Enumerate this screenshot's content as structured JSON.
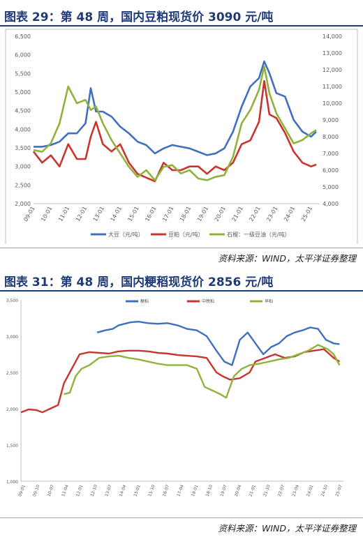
{
  "figures": [
    {
      "title": "图表 29：第 48 周，国内豆粕现货价 3090 元/吨",
      "source": "资料来源：WIND，太平洋证券整理"
    },
    {
      "title": "图表 31：第 48 周，国内粳稻现货价 2856 元/吨",
      "source": "资料来源：WIND，太平洋证券整理"
    }
  ],
  "chart_data": [
    {
      "type": "line",
      "title": "",
      "x_tick_labels": [
        "09-01",
        "10-01",
        "11-01",
        "12-01",
        "13-01",
        "14-01",
        "15-01",
        "16-01",
        "17-01",
        "18-01",
        "19-01",
        "20-01",
        "21-01",
        "22-01",
        "23-01",
        "24-01",
        "25-01"
      ],
      "y_left": {
        "range": [
          2000,
          6500
        ],
        "ticks": [
          "2,000",
          "2,500",
          "3,000",
          "3,500",
          "4,000",
          "4,500",
          "5,000",
          "5,500",
          "6,000",
          "6,500"
        ]
      },
      "y_right": {
        "range": [
          4000,
          14000
        ],
        "ticks": [
          "4,000",
          "5,000",
          "6,000",
          "7,000",
          "8,000",
          "9,000",
          "10,000",
          "11,000",
          "12,000",
          "13,000",
          "14,000"
        ]
      },
      "grid": false,
      "legend_position": "bottom",
      "series": [
        {
          "name": "大豆（元/吨）",
          "axis": "right",
          "color": "#3f6fbf",
          "x": [
            2009.0,
            2009.5,
            2010.0,
            2010.5,
            2011.0,
            2011.5,
            2012.0,
            2012.3,
            2012.6,
            2013.0,
            2013.5,
            2014.0,
            2014.5,
            2015.0,
            2015.5,
            2016.0,
            2016.5,
            2017.0,
            2017.5,
            2018.0,
            2018.5,
            2019.0,
            2019.5,
            2020.0,
            2020.5,
            2021.0,
            2021.5,
            2022.0,
            2022.3,
            2022.6,
            2023.0,
            2023.5,
            2024.0,
            2024.5,
            2025.0,
            2025.3
          ],
          "y": [
            7400,
            7400,
            7500,
            7700,
            8200,
            8200,
            8800,
            10900,
            9500,
            9500,
            9200,
            8600,
            8200,
            7700,
            7500,
            7000,
            7300,
            7500,
            7400,
            7300,
            7100,
            6900,
            7000,
            7300,
            8300,
            9800,
            11000,
            11500,
            12500,
            11800,
            10600,
            10400,
            9000,
            8300,
            8000,
            8300
          ]
        },
        {
          "name": "豆粕（元/吨）",
          "axis": "left",
          "color": "#c8352c",
          "x": [
            2009.0,
            2009.5,
            2010.0,
            2010.5,
            2011.0,
            2011.5,
            2012.0,
            2012.3,
            2012.6,
            2013.0,
            2013.5,
            2014.0,
            2014.5,
            2015.0,
            2015.5,
            2016.0,
            2016.5,
            2017.0,
            2017.5,
            2018.0,
            2018.5,
            2019.0,
            2019.5,
            2020.0,
            2020.5,
            2021.0,
            2021.5,
            2022.0,
            2022.3,
            2022.6,
            2023.0,
            2023.5,
            2024.0,
            2024.5,
            2025.0,
            2025.3
          ],
          "y": [
            3400,
            3100,
            3300,
            3000,
            3600,
            3200,
            3200,
            3800,
            4200,
            3600,
            3400,
            3600,
            3100,
            2800,
            2700,
            2600,
            3100,
            2900,
            2900,
            3000,
            3000,
            2800,
            3000,
            2900,
            3100,
            3600,
            3700,
            4200,
            5300,
            4400,
            4300,
            3900,
            3400,
            3100,
            3000,
            3050
          ]
        },
        {
          "name": "石榴：一级豆油（元/吨）",
          "axis": "right",
          "color": "#8fb33a",
          "x": [
            2009.0,
            2009.5,
            2010.0,
            2010.5,
            2011.0,
            2011.5,
            2012.0,
            2012.3,
            2012.6,
            2013.0,
            2013.5,
            2014.0,
            2014.5,
            2015.0,
            2015.5,
            2016.0,
            2016.5,
            2017.0,
            2017.5,
            2018.0,
            2018.5,
            2019.0,
            2019.5,
            2020.0,
            2020.5,
            2021.0,
            2021.5,
            2022.0,
            2022.3,
            2022.6,
            2023.0,
            2023.5,
            2024.0,
            2024.5,
            2025.0,
            2025.3
          ],
          "y": [
            7200,
            7100,
            7600,
            8800,
            11000,
            10000,
            10200,
            9600,
            9800,
            8800,
            7800,
            7000,
            6200,
            5600,
            6000,
            5400,
            6200,
            6300,
            5800,
            6000,
            5500,
            5400,
            5600,
            5700,
            6800,
            8800,
            9600,
            10800,
            12200,
            10600,
            9400,
            8500,
            7600,
            7800,
            8200,
            8400
          ]
        }
      ]
    },
    {
      "type": "line",
      "title": "",
      "x_tick_labels": [
        "09-01",
        "09-10",
        "10-07",
        "11-04",
        "12-01",
        "12-10",
        "13-07",
        "14-04",
        "15-01",
        "15-10",
        "16-07",
        "17-04",
        "18-01",
        "18-10",
        "19-07",
        "20-04",
        "21-01",
        "21-10",
        "22-07",
        "23-04",
        "24-01",
        "24-10",
        "25-07"
      ],
      "y_axis": {
        "range": [
          1000,
          3500
        ],
        "ticks": [
          "1,000",
          "1,500",
          "2,000",
          "2,500",
          "3,000",
          "3,500"
        ]
      },
      "grid": false,
      "legend_position": "top",
      "series": [
        {
          "name": "粳稻",
          "color": "#3f6fbf",
          "x": [
            2012.9,
            2013.3,
            2013.7,
            2014.0,
            2014.3,
            2014.6,
            2015.0,
            2015.5,
            2016.0,
            2016.5,
            2017.0,
            2017.5,
            2018.0,
            2018.5,
            2019.0,
            2019.4,
            2019.8,
            2020.2,
            2020.6,
            2021.0,
            2021.4,
            2021.8,
            2022.2,
            2022.6,
            2023.0,
            2023.4,
            2023.8,
            2024.2,
            2024.6,
            2025.0,
            2025.3
          ],
          "y": [
            3050,
            3080,
            3100,
            3150,
            3170,
            3190,
            3200,
            3180,
            3170,
            3180,
            3150,
            3100,
            3080,
            3000,
            2800,
            2650,
            2600,
            2950,
            3050,
            2900,
            2750,
            2850,
            2900,
            3000,
            3050,
            3080,
            3120,
            3100,
            2950,
            2900,
            2890
          ]
        },
        {
          "name": "中晚籼",
          "color": "#c8352c",
          "x": [
            2009.0,
            2009.4,
            2009.8,
            2010.1,
            2010.5,
            2010.9,
            2011.2,
            2011.5,
            2011.8,
            2012.0,
            2012.5,
            2013.0,
            2013.5,
            2014.0,
            2014.5,
            2015.0,
            2015.5,
            2016.0,
            2016.5,
            2017.0,
            2017.5,
            2018.0,
            2018.5,
            2019.0,
            2019.3,
            2019.7,
            2020.2,
            2020.7,
            2021.0,
            2021.5,
            2022.0,
            2022.5,
            2023.0,
            2023.5,
            2024.0,
            2024.5,
            2025.0,
            2025.3
          ],
          "y": [
            1950,
            1990,
            1980,
            1950,
            2000,
            2050,
            2350,
            2500,
            2650,
            2750,
            2780,
            2770,
            2760,
            2790,
            2800,
            2800,
            2790,
            2770,
            2760,
            2740,
            2730,
            2720,
            2700,
            2500,
            2450,
            2400,
            2420,
            2500,
            2650,
            2700,
            2750,
            2700,
            2720,
            2780,
            2800,
            2820,
            2700,
            2650
          ]
        },
        {
          "name": "早籼",
          "color": "#8fb33a",
          "x": [
            2011.2,
            2011.5,
            2011.8,
            2012.1,
            2012.5,
            2013.0,
            2013.5,
            2014.0,
            2014.5,
            2015.0,
            2015.5,
            2016.0,
            2016.5,
            2017.0,
            2017.5,
            2018.0,
            2018.4,
            2018.8,
            2019.2,
            2019.5,
            2019.9,
            2020.3,
            2020.7,
            2021.2,
            2021.7,
            2022.2,
            2022.7,
            2023.2,
            2023.7,
            2024.2,
            2024.7,
            2025.0,
            2025.3
          ],
          "y": [
            2200,
            2220,
            2450,
            2550,
            2600,
            2700,
            2720,
            2730,
            2700,
            2680,
            2650,
            2620,
            2600,
            2600,
            2600,
            2550,
            2300,
            2250,
            2200,
            2150,
            2450,
            2550,
            2600,
            2620,
            2650,
            2680,
            2700,
            2750,
            2800,
            2880,
            2820,
            2750,
            2600
          ]
        }
      ]
    }
  ]
}
